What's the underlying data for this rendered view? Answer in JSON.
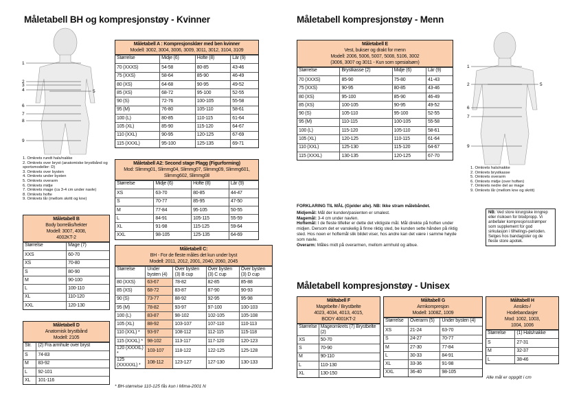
{
  "women_title": "Måletabell BH og kompresjonstøy - Kvinner",
  "men_title": "Måletabell kompresjonstøy - Menn",
  "unisex_title": "Måletabell kompresjonstøy - Unisex",
  "women_figure": {
    "labels": [
      "1",
      "2",
      "3",
      "4",
      "5",
      "6",
      "7",
      "8",
      "9"
    ],
    "legend": [
      "1. Omkrets rundt hals/nakke",
      "2. Omkrets over bryst (anatomiske brystbånd og sportsmodeller: D)",
      "3. Omkrets over bysten",
      "4. Omkrets under bysten",
      "5. Omkrets overarm",
      "6. Omkrets midje",
      "7. Omkrets mage (ca 3-4 cm under navle)",
      "8. Omkrets hofte",
      "9. Omkrets lår (mellom skritt og kne)"
    ]
  },
  "men_figure": {
    "labels": [
      "1",
      "2",
      "5",
      "6",
      "7",
      "9"
    ],
    "legend": [
      "1. Omkrets hals/nakke",
      "2. Omkrets brystkasse",
      "5. Omkrets overarm",
      "6. Omkrets midje (over hoften)",
      "7. Omkrets nedre del av mage",
      "9. Omkrets lår (mellom kne og skritt)"
    ]
  },
  "tables": {
    "a": {
      "header": [
        "Måletabell A : Kompresjonsklær med ben kvinner",
        "Modell: 3002, 3004, 3006, 3009, 3011, 3012, 3104, 3109"
      ],
      "columns": [
        "Størrelse",
        "Midje (6)",
        "Hofte (8)",
        "Lår (9)"
      ],
      "rows": [
        [
          "70 (XXXS)",
          "54-58",
          "80-85",
          "43-46"
        ],
        [
          "75 (XXS)",
          "58-64",
          "85-90",
          "46-49"
        ],
        [
          "80 (XS)",
          "64-68",
          "90-95",
          "49-52"
        ],
        [
          "85 (XS)",
          "68-72",
          "95-100",
          "52-55"
        ],
        [
          "90 (S)",
          "72-76",
          "100-105",
          "55-58"
        ],
        [
          "95 (M)",
          "76-80",
          "105-110",
          "58-61"
        ],
        [
          "100 (L)",
          "80-85",
          "110-115",
          "61-64"
        ],
        [
          "105 (XL)",
          "85-90",
          "115-120",
          "64-67"
        ],
        [
          "110 (XXL)",
          "90-95",
          "120-125",
          "67-69"
        ],
        [
          "115 (XXXL)",
          "95-100",
          "125-135",
          "69-71"
        ]
      ]
    },
    "a2": {
      "header": [
        "Måletabell A2: Second stage Plagg (Figurforming)",
        "Mod: Slimmg01, Slimmg04, Slimmg07, Slimmg09, Slimmg601, Slimmg602, Slimmg08"
      ],
      "columns": [
        "Størrelse",
        "Midje (6)",
        "Hofte (8)",
        "Lår (9)"
      ],
      "rows": [
        [
          "XS",
          "63-70",
          "80-85",
          "44-47"
        ],
        [
          "S",
          "70-77",
          "85-95",
          "47-50"
        ],
        [
          "M",
          "77-84",
          "95-105",
          "50-55"
        ],
        [
          "L",
          "84-91",
          "105-115",
          "55-59"
        ],
        [
          "XL",
          "91-98",
          "115-125",
          "59-64"
        ],
        [
          "XXL",
          "98-105",
          "125-135",
          "64-69"
        ]
      ]
    },
    "b": {
      "header": [
        "Måletabell B",
        "Body borrelås/hekter",
        "Modell: 3007, 4008,",
        "4002KT-2"
      ],
      "columns": [
        "Størrelse",
        "Mage (7)"
      ],
      "rows": [
        [
          "XXS",
          "60-70"
        ],
        [
          "XS",
          "70-80"
        ],
        [
          "S",
          "80-90"
        ],
        [
          "M",
          "90-100"
        ],
        [
          "L",
          "100-110"
        ],
        [
          "XL",
          "110-120"
        ],
        [
          "XXL",
          "120-130"
        ]
      ]
    },
    "c": {
      "header": [
        "Måletabell C:",
        "BH - For de fleste måles det kun under byst",
        "Modell: 2011, 2012, 2001, 2040, 2060, 2045"
      ],
      "columns": [
        "Størrelse",
        "Under bysten (4)",
        "Over bysten (3) B cup",
        "Over bysten (3) C cup",
        "Over bysten (3) D cup"
      ],
      "rows": [
        [
          "80 (XXS)",
          "63-67",
          "78-82",
          "82-85",
          "85-88"
        ],
        [
          "85 (XS)",
          "68-72",
          "83-87",
          "87-90",
          "90-93"
        ],
        [
          "90 (S)",
          "73-77",
          "88-92",
          "92-95",
          "95-98"
        ],
        [
          "95 (M)",
          "78-82",
          "93-97",
          "97-100",
          "100-103"
        ],
        [
          "100 (L)",
          "83-87",
          "98-102",
          "102-105",
          "105-108"
        ],
        [
          "105 (XL)",
          "88-92",
          "103-107",
          "107-110",
          "110-113"
        ],
        [
          "110 (XXL) *",
          "93-97",
          "108-112",
          "112-115",
          "115-118"
        ],
        [
          "115 (XXXL) *",
          "98-102",
          "113-117",
          "117-120",
          "120-123"
        ],
        [
          "120 (XXXXL) *",
          "103-107",
          "118-122",
          "122-125",
          "125-128"
        ],
        [
          "125 (XXXXXL) *",
          "108-112",
          "123-127",
          "127-130",
          "130-133"
        ]
      ],
      "footnote": "* BH-størrelse 110-125 fås kun i Mima-2001 N"
    },
    "d": {
      "header": [
        "Måletabell D",
        "Anatomisk brystbånd",
        "Modell: 2105"
      ],
      "columns": [
        "Str.",
        "(2) Fra armhule over bryst"
      ],
      "rows": [
        [
          "S",
          "74-83"
        ],
        [
          "M",
          "83-92"
        ],
        [
          "L",
          "92-101"
        ],
        [
          "XL",
          "101-116"
        ]
      ]
    },
    "e": {
      "header": [
        "Måletabell E",
        "Vest, bukser og drakt for menn",
        "Modell: 2006, 5006, 5007, 5008, 5106, 3002",
        "(3006, 3007 og 3011 - Kun som spesialsøm)"
      ],
      "columns": [
        "Størrelse",
        "Brystkasse (2)",
        "Midje (6)",
        "Lår (9)"
      ],
      "rows": [
        [
          "70 (XXXS)",
          "85-90",
          "75-80",
          "41-43"
        ],
        [
          "75 (XXS)",
          "90-95",
          "80-85",
          "43-46"
        ],
        [
          "80 (XS)",
          "95-100",
          "85-90",
          "46-49"
        ],
        [
          "85 (XS)",
          "100-105",
          "90-95",
          "49-52"
        ],
        [
          "90 (S)",
          "105-110",
          "95-100",
          "52-55"
        ],
        [
          "95 (M)",
          "110-115",
          "100-105",
          "55-58"
        ],
        [
          "100 (L)",
          "115-120",
          "105-110",
          "58-61"
        ],
        [
          "105 (XL)",
          "120-125",
          "110-115",
          "61-64"
        ],
        [
          "110 (XXL)",
          "125-130",
          "115-120",
          "64-67"
        ],
        [
          "115 (XXXL)",
          "130-135",
          "120-125",
          "67-70"
        ]
      ]
    },
    "f": {
      "header": [
        "Måltabell F",
        "Magebelte / Brystbelte",
        "4023, 4034, 4013, 4015,",
        "BODY 4001KT-2"
      ],
      "columns": [
        "Størrelse",
        "Mageomkrets (7) Brystbelte (2)"
      ],
      "rows": [
        [
          "XS",
          "50-70"
        ],
        [
          "S",
          "70-90"
        ],
        [
          "M",
          "90-110"
        ],
        [
          "L",
          "110-130"
        ],
        [
          "XL",
          "130-150"
        ]
      ]
    },
    "g": {
      "header": [
        "Måltabell G",
        "Armkompresjon",
        "Modell: 1008Z, 1009"
      ],
      "columns": [
        "Størrelse",
        "Overarm (5)",
        "Under bysten (4)"
      ],
      "rows": [
        [
          "XS",
          "21-24",
          "63-70"
        ],
        [
          "S",
          "24-27",
          "70-77"
        ],
        [
          "M",
          "27-30",
          "77-84"
        ],
        [
          "L",
          "30-33",
          "84-91"
        ],
        [
          "XL",
          "33-36",
          "91-98"
        ],
        [
          "XXL",
          "36-40",
          "98-105"
        ]
      ]
    },
    "h": {
      "header": [
        "Måltabell H",
        "Ansikts-/",
        "Hodebandasjer",
        "Mod: 1002, 1003,",
        "1004, 1006"
      ],
      "columns": [
        "Størrelse",
        "(1) Hals/nakke"
      ],
      "rows": [
        [
          "S",
          "27-31"
        ],
        [
          "M",
          "32-37"
        ],
        [
          "L",
          "38-46"
        ]
      ],
      "footnote": "Alle mål er oppgitt i cm"
    }
  },
  "explanation": {
    "heading": "FORKLARING TIL MÅL (Gjelder alle). NB: Ikke stram målebåndet.",
    "items": [
      {
        "label": "Midjemål:",
        "text": "Mål der kunden/pasienten er smalest."
      },
      {
        "label": "Magemål:",
        "text": "3-4 cm under navlen."
      },
      {
        "label": "Hoftemål:",
        "text": "I de fleste tilfeller er dette det viktigste mål. Mål direkte på hoften under midjen. Dersom det er vanskelig å finne riktig sted, be kunden sette hånden på riktig sted. Hos noen er hoftemål slik bildet viser, hos andre kan det være i samme høyde som navle."
      },
      {
        "label": "Overarm:",
        "text": "Måles midt på overarmen, mellom armhuld og albue."
      }
    ]
  },
  "nb_box": {
    "label": "NB:",
    "text": "Ved store kirurgiske inngrep eller risikoen for blodpropp. Vi anbefaler kompresjonsstrømper som supplement for god sirkulasjon i tilhelings-perioden. Selges hos bandagister og de fleste store apotek."
  }
}
